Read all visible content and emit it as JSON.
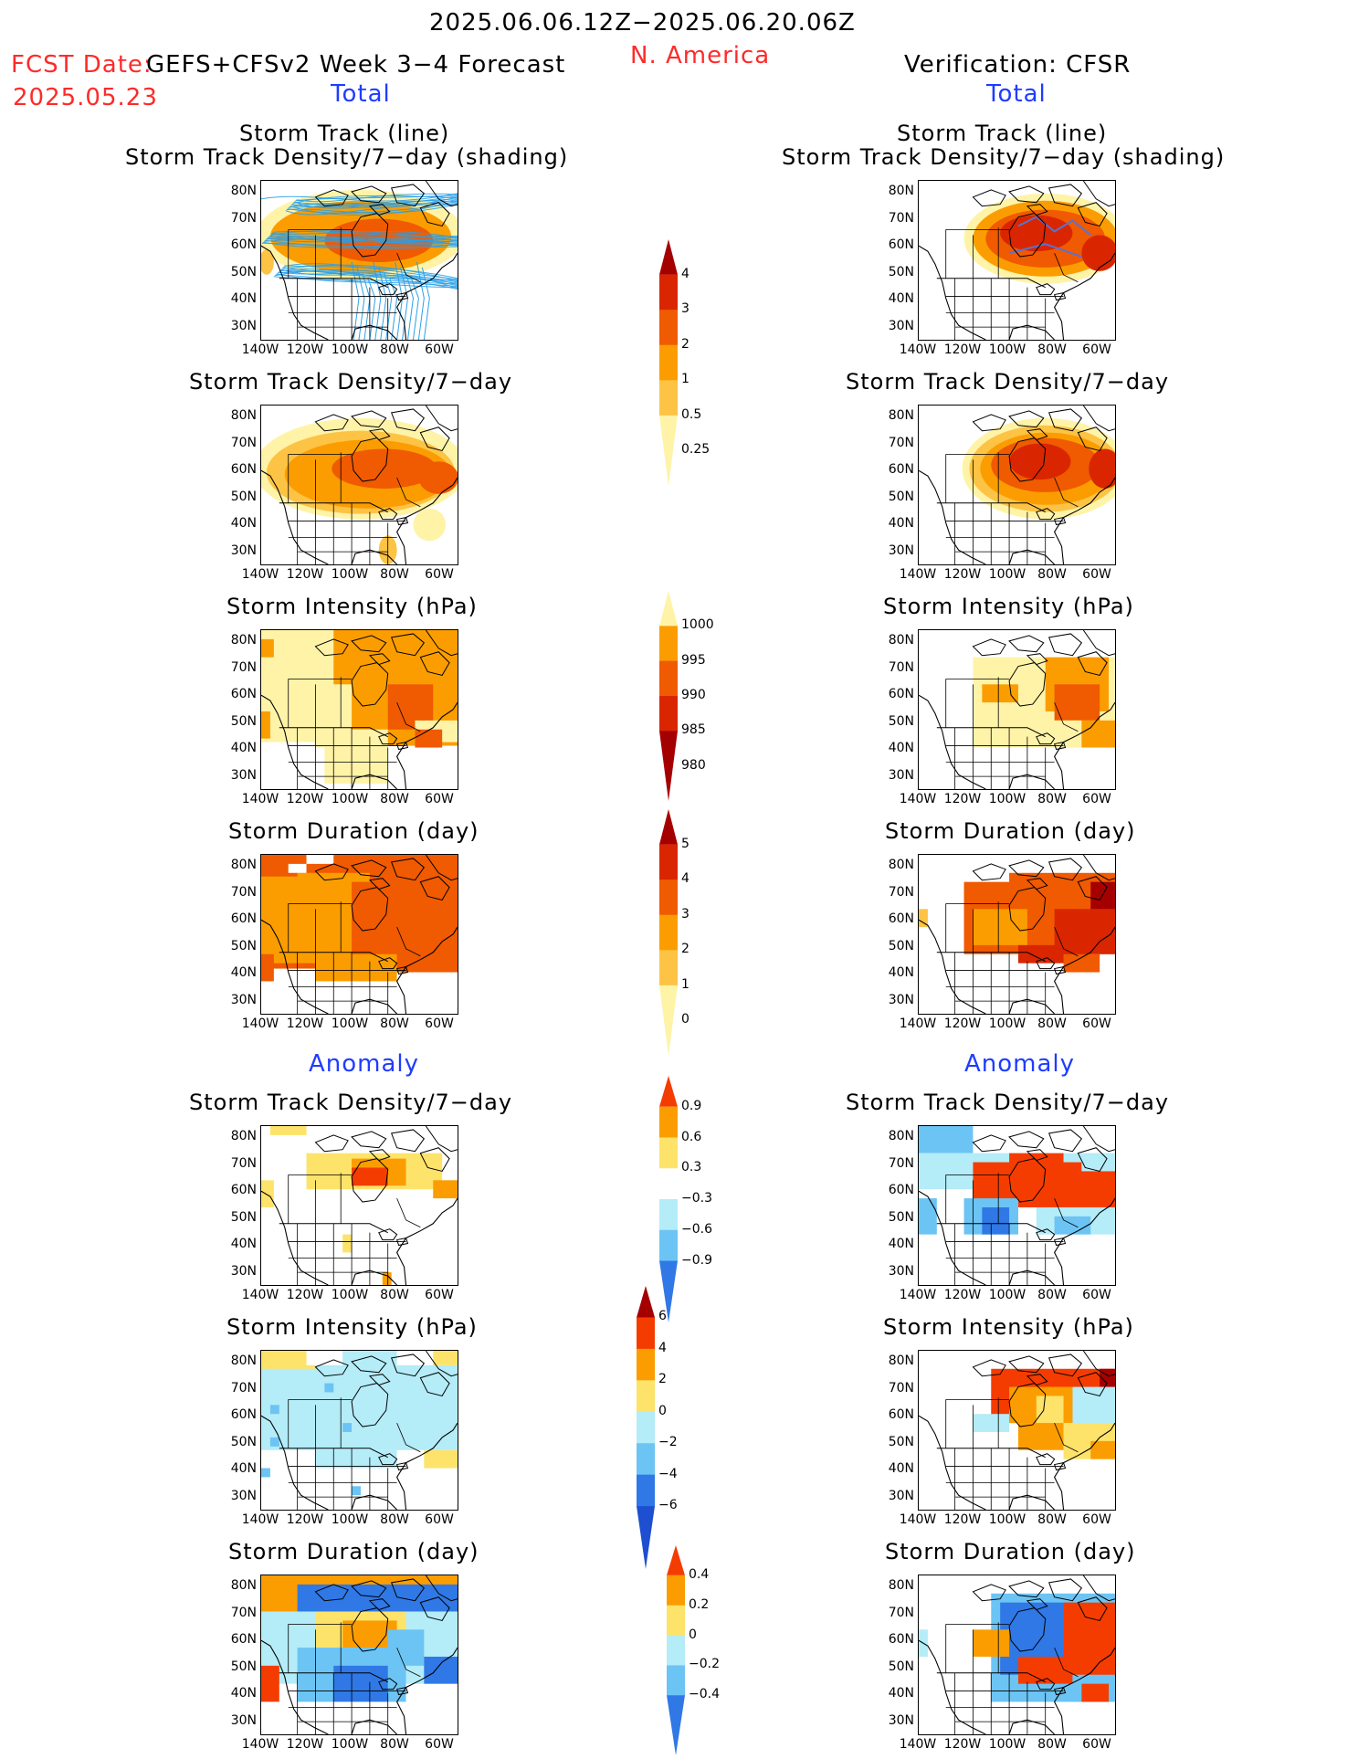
{
  "header": {
    "period": "2025.06.06.12Z−2025.06.20.06Z",
    "region": "N. America",
    "fcst_label": "FCST Date:",
    "fcst_model": "GEFS+CFSv2 Week 3−4 Forecast",
    "fcst_date": "2025.05.23",
    "verification": "Verification: CFSR",
    "left_section_total": "Total",
    "right_section_total": "Total",
    "left_section_anomaly": "Anomaly",
    "right_section_anomaly": "Anomaly"
  },
  "panel_titles": {
    "track_line": "Storm Track (line)",
    "track_density_shading": "Storm Track Density/7−day (shading)",
    "track_density": "Storm Track Density/7−day",
    "intensity": "Storm Intensity (hPa)",
    "duration": "Storm Duration (day)"
  },
  "axes": {
    "lat_ticks": [
      "80N",
      "70N",
      "60N",
      "50N",
      "40N",
      "30N"
    ],
    "lon_ticks": [
      "140W",
      "120W",
      "100W",
      "80W",
      "60W"
    ]
  },
  "colorbars": {
    "density": {
      "labels": [
        "4",
        "3",
        "2",
        "1",
        "0.5",
        "0.25"
      ],
      "colors": [
        "#a50000",
        "#d92600",
        "#f05a00",
        "#fb9d00",
        "#fdc344",
        "#fff3a8"
      ]
    },
    "intensity": {
      "labels": [
        "1000",
        "995",
        "990",
        "985",
        "980"
      ],
      "colors": [
        "#fff3a8",
        "#fb9d00",
        "#f05a00",
        "#d92600",
        "#a50000"
      ]
    },
    "duration": {
      "labels": [
        "5",
        "4",
        "3",
        "2",
        "1",
        "0"
      ],
      "colors": [
        "#a50000",
        "#d92600",
        "#f05a00",
        "#fb9d00",
        "#fdc344",
        "#fff3a8"
      ]
    },
    "anom_density": {
      "labels": [
        "0.9",
        "0.6",
        "0.3",
        "−0.3",
        "−0.6",
        "−0.9"
      ],
      "colors": [
        "#f53c00",
        "#fb9d00",
        "#fde36a",
        "#ffffff",
        "#b4ecf8",
        "#6cc4f4",
        "#2f78e6"
      ]
    },
    "anom_intensity": {
      "labels": [
        "6",
        "4",
        "2",
        "0",
        "−2",
        "−4",
        "−6"
      ],
      "colors": [
        "#a50000",
        "#f53c00",
        "#fb9d00",
        "#fde36a",
        "#b4ecf8",
        "#6cc4f4",
        "#2f78e6",
        "#1d4fd0"
      ]
    },
    "anom_duration": {
      "labels": [
        "0.4",
        "0.2",
        "0",
        "−0.2",
        "−0.4"
      ],
      "colors": [
        "#f53c00",
        "#fb9d00",
        "#fde36a",
        "#b4ecf8",
        "#6cc4f4",
        "#2f78e6"
      ]
    }
  },
  "colors": {
    "title_red": "#ff2a2a",
    "section_blue": "#1f3cff",
    "track_lines": "#2aa0e8",
    "track_lines_obs": "#5a72d0"
  }
}
